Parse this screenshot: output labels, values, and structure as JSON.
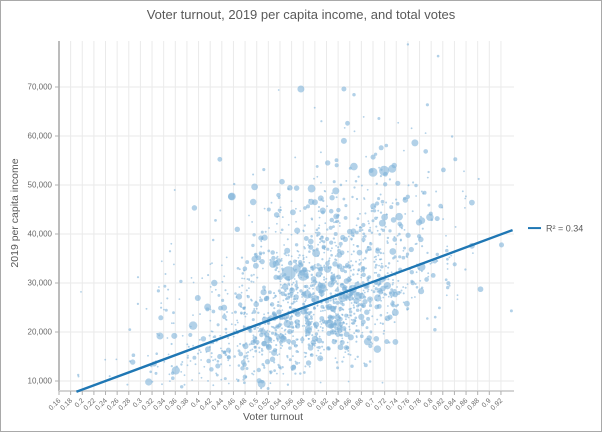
{
  "window": {
    "background_color": "#ffffff",
    "border_color": "#a9a9a9"
  },
  "chart": {
    "title": "Voter turnout, 2019 per capita income, and total votes",
    "x_axis_title": "Voter turnout",
    "y_axis_title": "2019 per capita income"
  },
  "chart_data": {
    "type": "scatter",
    "title": "Voter turnout, 2019 per capita income, and total votes",
    "xlabel": "Voter turnout",
    "ylabel": "2019 per capita income",
    "bubble_size_encodes": "total votes",
    "grid": true,
    "legend_position": "right-of-plot",
    "x_ticks": [
      "0.16",
      "0.18",
      "0.2",
      "0.22",
      "0.24",
      "0.26",
      "0.28",
      "0.3",
      "0.32",
      "0.34",
      "0.36",
      "0.38",
      "0.4",
      "0.42",
      "0.44",
      "0.46",
      "0.48",
      "0.5",
      "0.52",
      "0.54",
      "0.56",
      "0.58",
      "0.6",
      "0.62",
      "0.64",
      "0.66",
      "0.68",
      "0.7",
      "0.72",
      "0.74",
      "0.76",
      "0.78",
      "0.8",
      "0.82",
      "0.84",
      "0.86",
      "0.88",
      "0.9",
      "0.92"
    ],
    "y_ticks": [
      "10,000",
      "20,000",
      "30,000",
      "40,000",
      "50,000",
      "60,000",
      "70,000"
    ],
    "x_tick_step": 0.02,
    "y_tick_step": 10000,
    "x_range": [
      0.16,
      0.92
    ],
    "y_range": [
      8000,
      79000
    ],
    "point_color": "#7fb3d8",
    "point_opacity": 0.6,
    "grid_color": "#eaeaea",
    "axis_line_color": "#a6a6a6",
    "x_axis_line_color": "#d4d4d4",
    "tick_color": "#b0b0b0",
    "tick_label_color": "#696969",
    "trendline": {
      "x1": 0.19,
      "y1": 7800,
      "x2": 0.94,
      "y2": 40800,
      "color": "#1f77b4",
      "width": 2.4,
      "r2": 0.34,
      "label": "R² = 0.34"
    },
    "notable_points": [
      {
        "x": 0.555,
        "y": 32000,
        "r": 7.0
      },
      {
        "x": 0.58,
        "y": 31600,
        "r": 5.5
      },
      {
        "x": 0.569,
        "y": 33000,
        "r": 4.0
      },
      {
        "x": 0.7,
        "y": 52600,
        "r": 4.5
      },
      {
        "x": 0.719,
        "y": 52900,
        "r": 5.0
      },
      {
        "x": 0.733,
        "y": 53300,
        "r": 4.0
      },
      {
        "x": 0.576,
        "y": 69600,
        "r": 3.5
      },
      {
        "x": 0.65,
        "y": 69600,
        "r": 2.5
      },
      {
        "x": 0.772,
        "y": 58600,
        "r": 3.5
      },
      {
        "x": 0.65,
        "y": 59000,
        "r": 3.0
      },
      {
        "x": 0.714,
        "y": 57600,
        "r": 2.5
      },
      {
        "x": 0.622,
        "y": 54500,
        "r": 2.7
      },
      {
        "x": 0.636,
        "y": 48800,
        "r": 3.5
      },
      {
        "x": 0.6,
        "y": 46500,
        "r": 3.0
      },
      {
        "x": 0.427,
        "y": 30000,
        "r": 3.2
      },
      {
        "x": 0.335,
        "y": 22900,
        "r": 2.5
      },
      {
        "x": 0.76,
        "y": 78700,
        "r": 1.2
      },
      {
        "x": 0.812,
        "y": 76300,
        "r": 1.3
      },
      {
        "x": 0.836,
        "y": 59900,
        "r": 1.2
      },
      {
        "x": 0.938,
        "y": 24300,
        "r": 1.5
      }
    ],
    "point_cloud": {
      "comment": "dense cloud approximated by seeded generator; positive correlation, R2=0.34",
      "seed": 7,
      "count": 1650,
      "x_mixture": [
        {
          "w": 0.85,
          "mean": 0.62,
          "sd": 0.09
        },
        {
          "w": 0.13,
          "mean": 0.43,
          "sd": 0.08
        }
      ],
      "x_uniform_weight": 0.02,
      "x_min": 0.168,
      "x_max": 0.93,
      "trend_slope": 44000,
      "trend_intercept": -560,
      "noise_sd": 6800,
      "pos_noise_skew": 1.55,
      "upshift_prob": 0.065,
      "upshift_min": 5000,
      "upshift_max": 27000,
      "y_min": 8400,
      "y_max": 78800,
      "r_base": 0.9,
      "r_scale": 2.2,
      "r_pow": 4,
      "big_prob": 0.045,
      "big_min": 2.3,
      "big_max": 4.3
    }
  }
}
